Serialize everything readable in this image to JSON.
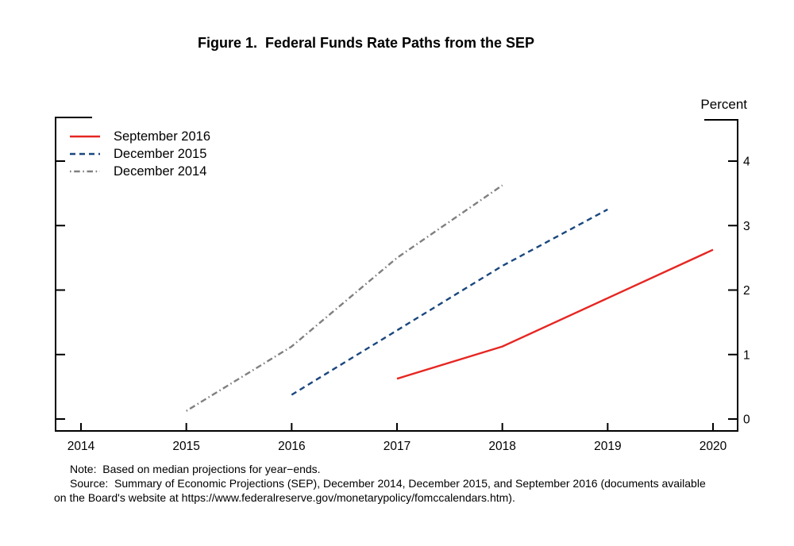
{
  "figure": {
    "title": "Figure 1.  Federal Funds Rate Paths from the SEP",
    "unit_label": "Percent"
  },
  "notes": {
    "note": "Note:  Based on median projections for year−ends.",
    "source_line1": "Source:  Summary of Economic Projections (SEP), December 2014, December 2015, and September 2016 (documents available",
    "source_line2": "on the Board's website at https://www.federalreserve.gov/monetarypolicy/fomccalendars.htm)."
  },
  "chart_data": {
    "type": "line",
    "title": "Figure 1.  Federal Funds Rate Paths from the SEP",
    "xlabel": "",
    "ylabel": "Percent",
    "x_ticks": [
      2014,
      2015,
      2016,
      2017,
      2018,
      2019,
      2020
    ],
    "y_ticks": [
      0,
      1,
      2,
      3,
      4
    ],
    "xlim": [
      2013.76,
      2020.23
    ],
    "ylim": [
      0,
      4.67
    ],
    "grid": false,
    "legend_position": "top-left",
    "axis_color": "#000000",
    "y_axis_side": "right",
    "series": [
      {
        "name": "September 2016",
        "style": "solid",
        "color": "#e62622",
        "x": [
          2017,
          2018,
          2019,
          2020
        ],
        "values": [
          0.625,
          1.125,
          1.875,
          2.625
        ]
      },
      {
        "name": "December 2015",
        "style": "dashed",
        "color": "#1a477e",
        "x": [
          2016,
          2017,
          2018,
          2019
        ],
        "values": [
          0.375,
          1.375,
          2.375,
          3.25
        ]
      },
      {
        "name": "December 2014",
        "style": "dashdot",
        "color": "#808080",
        "x": [
          2015,
          2016,
          2017,
          2018
        ],
        "values": [
          0.125,
          1.125,
          2.5,
          3.625
        ]
      }
    ]
  }
}
